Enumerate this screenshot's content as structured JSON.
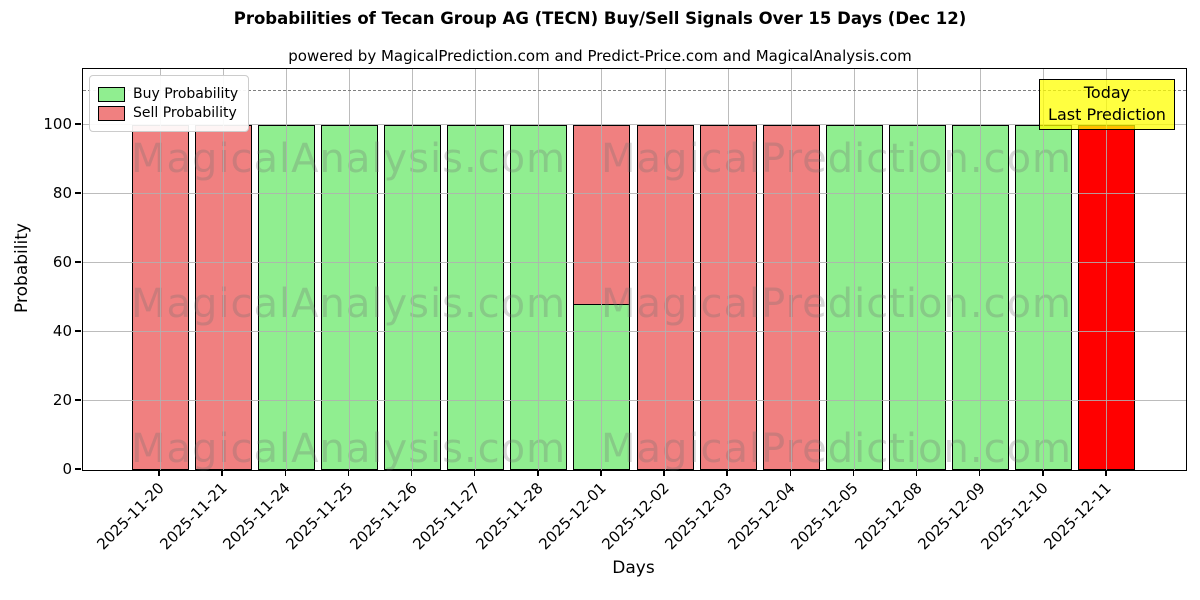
{
  "title": "Probabilities of Tecan Group AG (TECN) Buy/Sell Signals Over 15 Days (Dec 12)",
  "subtitle": "powered by MagicalPrediction.com and Predict-Price.com and MagicalAnalysis.com",
  "legend": {
    "buy_label": "Buy Probability",
    "sell_label": "Sell Probability"
  },
  "annotation": {
    "line1": "Today",
    "line2": "Last Prediction"
  },
  "axes": {
    "xlabel": "Days",
    "ylabel": "Probability",
    "yticks": [
      0,
      20,
      40,
      60,
      80,
      100
    ]
  },
  "watermarks": [
    "MagicalAnalysis.com",
    "MagicalPrediction.com"
  ],
  "colors": {
    "buy": "#90ee90",
    "sell": "#f08080",
    "today": "#ff0000",
    "annotation_bg": "#ffff00",
    "grid": "#b0b0b0",
    "dashed_line": "#7f7f7f",
    "bar_edge": "#000000"
  },
  "chart_data": {
    "type": "bar",
    "stacked": true,
    "title": "Probabilities of Tecan Group AG (TECN) Buy/Sell Signals Over 15 Days (Dec 12)",
    "xlabel": "Days",
    "ylabel": "Probability",
    "ylim": [
      0,
      116
    ],
    "dashed_line_y": 110,
    "grid": true,
    "legend_position": "upper left",
    "categories": [
      "2025-11-20",
      "2025-11-21",
      "2025-11-24",
      "2025-11-25",
      "2025-11-26",
      "2025-11-27",
      "2025-11-28",
      "2025-12-01",
      "2025-12-02",
      "2025-12-03",
      "2025-12-04",
      "2025-12-05",
      "2025-12-08",
      "2025-12-09",
      "2025-12-10",
      "2025-12-11"
    ],
    "series": [
      {
        "name": "Buy Probability",
        "color": "#90ee90",
        "values": [
          0,
          0,
          100,
          100,
          100,
          100,
          100,
          48,
          0,
          0,
          0,
          100,
          100,
          100,
          100,
          0
        ]
      },
      {
        "name": "Sell Probability",
        "color": "#f08080",
        "values": [
          100,
          100,
          0,
          0,
          0,
          0,
          0,
          52,
          100,
          100,
          100,
          0,
          0,
          0,
          0,
          100
        ]
      }
    ],
    "today_index": 15,
    "today_bar": {
      "date": "2025-12-11",
      "value": 100,
      "color": "#ff0000"
    }
  }
}
